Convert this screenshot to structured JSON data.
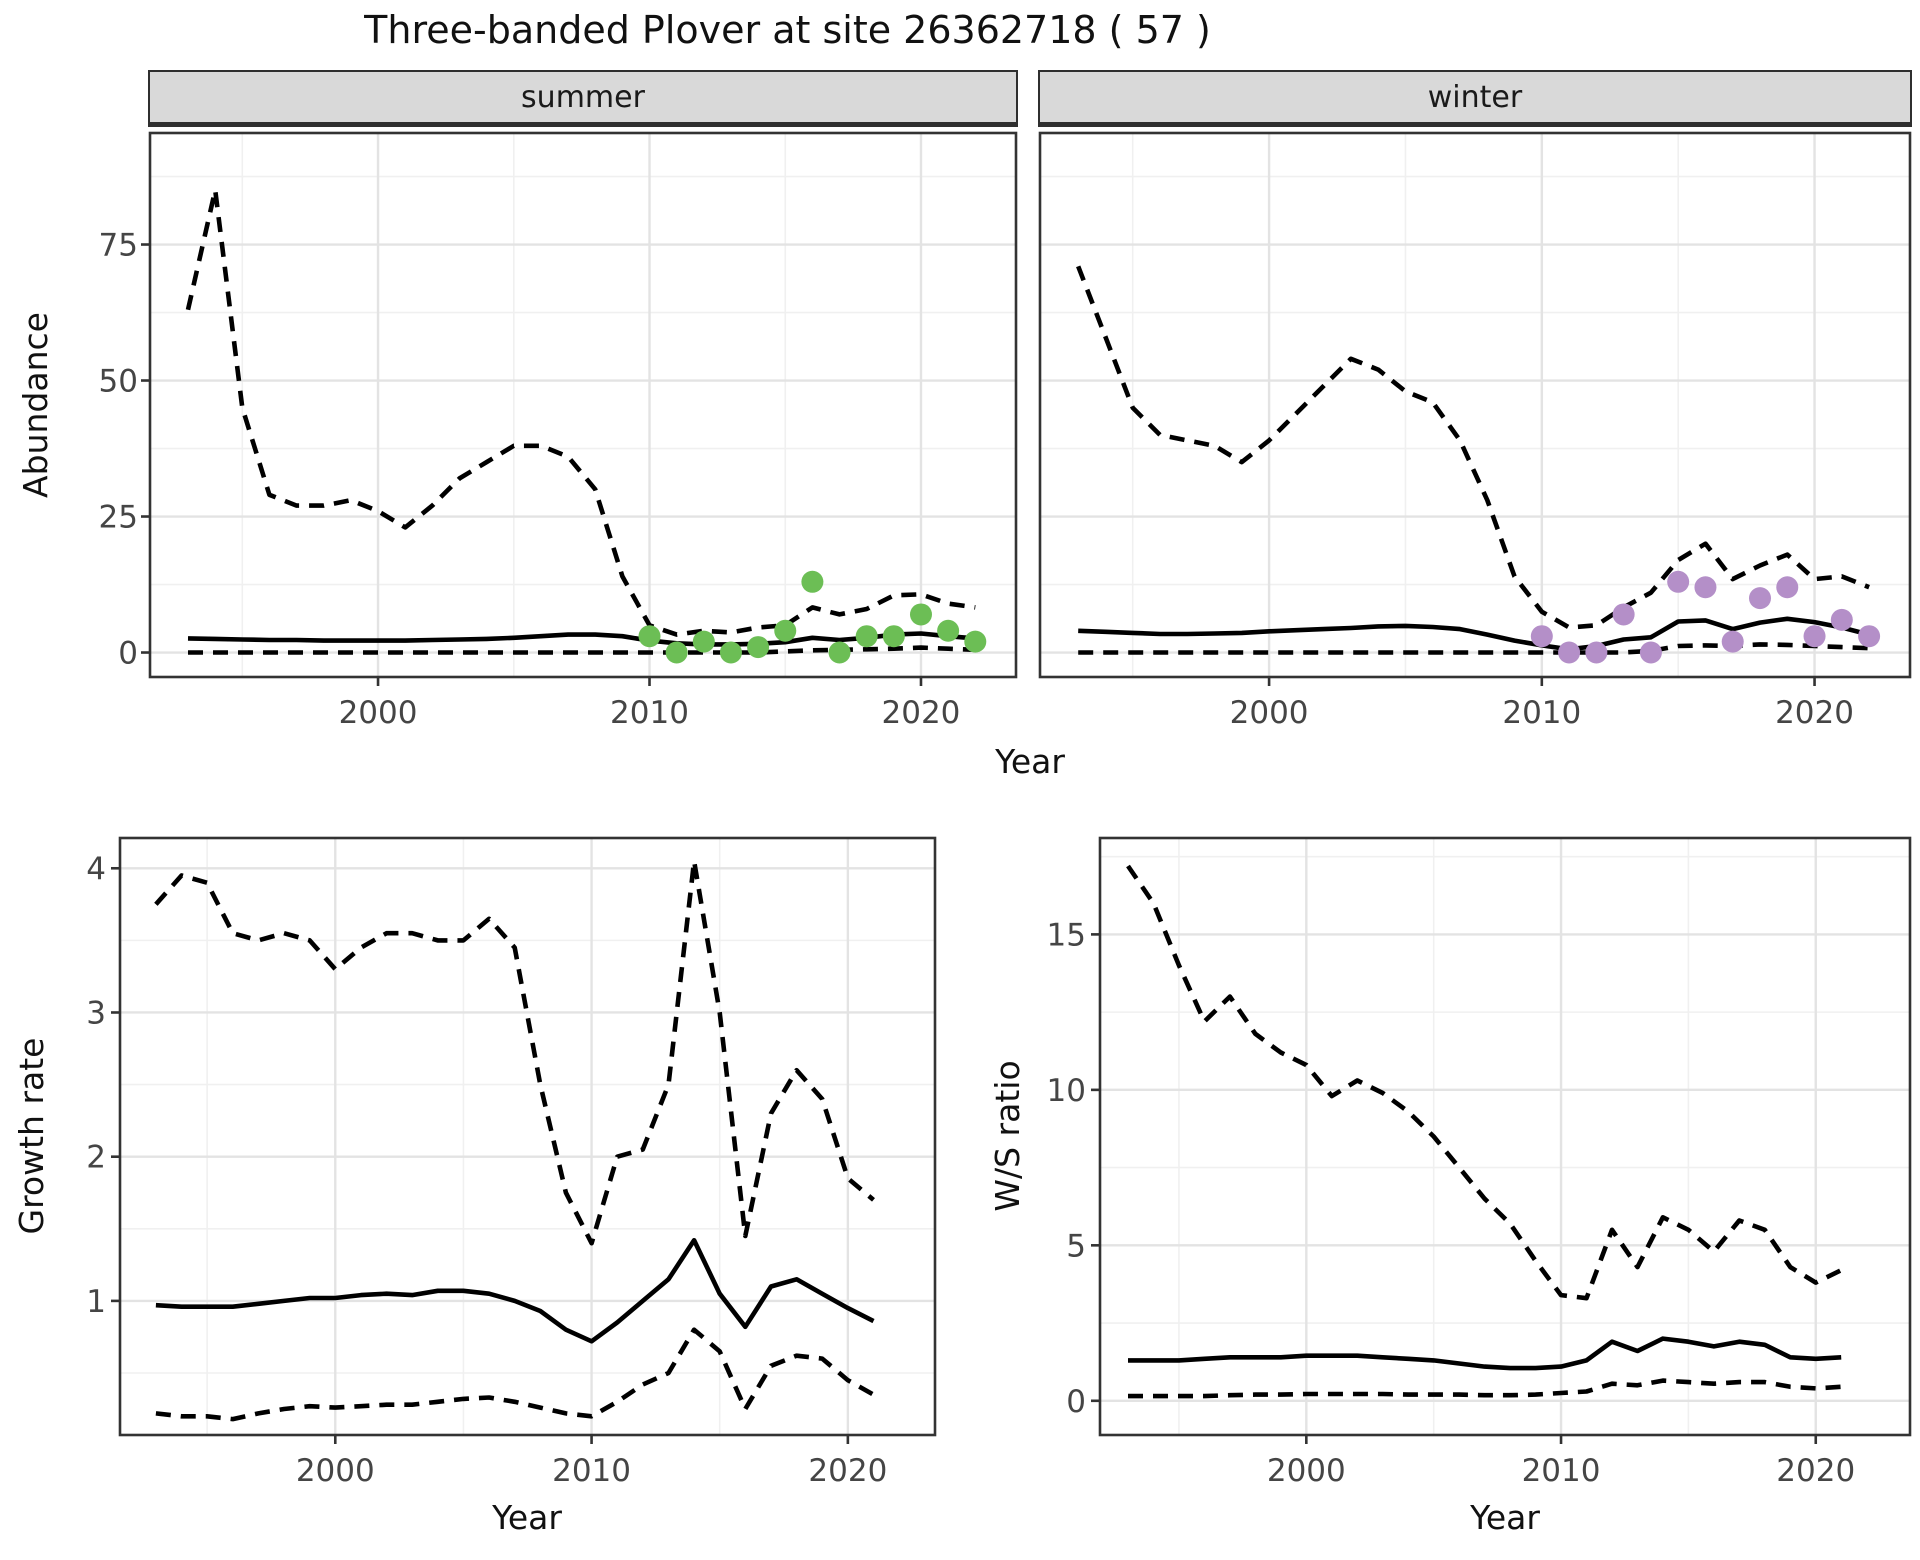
{
  "title": "Three-banded Plover at site 26362718 ( 57 )",
  "facets": {
    "summer": "summer",
    "winter": "winter"
  },
  "axis_labels": {
    "abundance_y": "Abundance",
    "top_x": "Year",
    "growth_y": "Growth rate",
    "growth_x": "Year",
    "ws_y": "W/S ratio",
    "ws_x": "Year"
  },
  "colors": {
    "summer_points": "#6CBE55",
    "winter_points": "#B48FC8",
    "line": "#000000",
    "grid_major": "#e3e3e3",
    "grid_minor": "#f0f0f0",
    "panel_border": "#333333",
    "strip_bg": "#d9d9d9",
    "tick_text": "#454545"
  },
  "chart_data": [
    {
      "id": "abundance_summer",
      "type": "line",
      "facet": "summer",
      "ylabel": "Abundance",
      "xlabel": "Year",
      "x": {
        "lim": [
          1991.6,
          2023.5
        ],
        "ticks": [
          2000,
          2010,
          2020
        ],
        "minor": [
          1995,
          2005,
          2015
        ]
      },
      "y": {
        "lim": [
          -4.5,
          95.5
        ],
        "ticks": [
          0,
          25,
          50,
          75
        ],
        "minor": [
          12.5,
          37.5,
          62.5,
          87.5
        ]
      },
      "years": [
        1993,
        1994,
        1995,
        1996,
        1997,
        1998,
        1999,
        2000,
        2001,
        2002,
        2003,
        2004,
        2005,
        2006,
        2007,
        2008,
        2009,
        2010,
        2011,
        2012,
        2013,
        2014,
        2015,
        2016,
        2017,
        2018,
        2019,
        2020,
        2021,
        2022
      ],
      "series": [
        {
          "name": "upper_ci",
          "linetype": "dashed",
          "values": [
            63,
            85,
            45,
            29,
            27,
            27,
            28,
            26,
            23,
            27,
            32,
            35,
            38,
            38,
            36,
            30,
            14,
            5,
            3.3,
            4,
            3.7,
            4.6,
            5,
            8.3,
            7,
            8,
            10.5,
            10.7,
            9,
            8.3
          ]
        },
        {
          "name": "median",
          "linetype": "solid",
          "values": [
            2.6,
            2.5,
            2.4,
            2.3,
            2.3,
            2.2,
            2.2,
            2.2,
            2.2,
            2.3,
            2.4,
            2.5,
            2.7,
            3,
            3.3,
            3.3,
            3,
            2.2,
            1.7,
            1.5,
            1.5,
            1.6,
            1.9,
            2.7,
            2.3,
            2.7,
            3.3,
            3.5,
            3,
            2.6
          ]
        },
        {
          "name": "lower_ci",
          "linetype": "dashed",
          "values": [
            0,
            0,
            0,
            0,
            0,
            0,
            0,
            0,
            0,
            0,
            0,
            0,
            0,
            0,
            0,
            0,
            0,
            0,
            0,
            0,
            0,
            0,
            0.2,
            0.4,
            0.5,
            0.6,
            0.7,
            0.9,
            0.7,
            0.5
          ]
        }
      ],
      "points": {
        "name": "observed_counts",
        "color_key": "summer_points",
        "years": [
          2010,
          2011,
          2012,
          2013,
          2014,
          2015,
          2016,
          2017,
          2018,
          2019,
          2020,
          2021,
          2022
        ],
        "values": [
          3,
          0,
          2,
          0,
          1,
          4,
          13,
          0,
          3,
          3,
          7,
          4,
          2
        ]
      }
    },
    {
      "id": "abundance_winter",
      "type": "line",
      "facet": "winter",
      "ylabel": "Abundance",
      "xlabel": "Year",
      "x": {
        "lim": [
          1991.6,
          2023.5
        ],
        "ticks": [
          2000,
          2010,
          2020
        ],
        "minor": [
          1995,
          2005,
          2015
        ]
      },
      "y": {
        "lim": [
          -4.5,
          95.5
        ],
        "ticks": [
          0,
          25,
          50,
          75
        ],
        "minor": [
          12.5,
          37.5,
          62.5,
          87.5
        ]
      },
      "years": [
        1993,
        1994,
        1995,
        1996,
        1997,
        1998,
        1999,
        2000,
        2001,
        2002,
        2003,
        2004,
        2005,
        2006,
        2007,
        2008,
        2009,
        2010,
        2011,
        2012,
        2013,
        2014,
        2015,
        2016,
        2017,
        2018,
        2019,
        2020,
        2021,
        2022
      ],
      "series": [
        {
          "name": "upper_ci",
          "linetype": "dashed",
          "values": [
            71,
            58,
            45,
            40,
            39,
            38,
            35,
            39,
            44,
            49,
            54,
            52,
            48,
            46,
            39,
            28,
            14,
            7.5,
            4.6,
            5,
            8.3,
            11,
            17,
            20,
            13.5,
            16,
            18,
            13.5,
            14,
            12
          ]
        },
        {
          "name": "median",
          "linetype": "solid",
          "values": [
            4,
            3.8,
            3.6,
            3.4,
            3.4,
            3.5,
            3.6,
            3.9,
            4.1,
            4.3,
            4.5,
            4.8,
            4.9,
            4.7,
            4.3,
            3.3,
            2.2,
            1.3,
            0.6,
            1.2,
            2.4,
            2.8,
            5.7,
            5.9,
            4.3,
            5.5,
            6.2,
            5.6,
            4.6,
            3.3
          ]
        },
        {
          "name": "lower_ci",
          "linetype": "dashed",
          "values": [
            0,
            0,
            0,
            0,
            0,
            0,
            0,
            0,
            0,
            0,
            0,
            0,
            0,
            0,
            0,
            0,
            0,
            0,
            0,
            0,
            0,
            0.3,
            1.2,
            1.3,
            1.2,
            1.5,
            1.4,
            1.2,
            1,
            0.8
          ]
        }
      ],
      "points": {
        "name": "observed_counts",
        "color_key": "winter_points",
        "years": [
          2010,
          2011,
          2012,
          2013,
          2014,
          2015,
          2016,
          2017,
          2018,
          2019,
          2020,
          2021,
          2022
        ],
        "values": [
          3,
          0,
          0,
          7,
          0,
          13,
          12,
          2,
          10,
          12,
          3,
          6,
          3
        ]
      }
    },
    {
      "id": "growth_rate",
      "type": "line",
      "ylabel": "Growth rate",
      "xlabel": "Year",
      "x": {
        "lim": [
          1991.6,
          2023.4
        ],
        "ticks": [
          2000,
          2010,
          2020
        ],
        "minor": [
          1995,
          2005,
          2015
        ]
      },
      "y": {
        "lim": [
          0.07,
          4.21
        ],
        "ticks": [
          1,
          2,
          3,
          4
        ],
        "minor": [
          0.5,
          1.5,
          2.5,
          3.5
        ]
      },
      "years": [
        1993,
        1994,
        1995,
        1996,
        1997,
        1998,
        1999,
        2000,
        2001,
        2002,
        2003,
        2004,
        2005,
        2006,
        2007,
        2008,
        2009,
        2010,
        2011,
        2012,
        2013,
        2014,
        2015,
        2016,
        2017,
        2018,
        2019,
        2020,
        2021
      ],
      "series": [
        {
          "name": "upper_ci",
          "linetype": "dashed",
          "values": [
            3.75,
            3.95,
            3.9,
            3.55,
            3.5,
            3.55,
            3.5,
            3.3,
            3.45,
            3.55,
            3.55,
            3.5,
            3.5,
            3.65,
            3.45,
            2.5,
            1.75,
            1.4,
            2,
            2.05,
            2.5,
            4.05,
            3,
            1.45,
            2.3,
            2.6,
            2.4,
            1.85,
            1.7
          ]
        },
        {
          "name": "median",
          "linetype": "solid",
          "values": [
            0.97,
            0.96,
            0.96,
            0.96,
            0.98,
            1,
            1.02,
            1.02,
            1.04,
            1.05,
            1.04,
            1.07,
            1.07,
            1.05,
            1,
            0.93,
            0.8,
            0.72,
            0.85,
            1,
            1.15,
            1.42,
            1.05,
            0.82,
            1.1,
            1.15,
            1.05,
            0.95,
            0.86
          ]
        },
        {
          "name": "lower_ci",
          "linetype": "dashed",
          "values": [
            0.22,
            0.2,
            0.2,
            0.18,
            0.22,
            0.25,
            0.27,
            0.26,
            0.27,
            0.28,
            0.28,
            0.3,
            0.32,
            0.33,
            0.3,
            0.26,
            0.22,
            0.2,
            0.3,
            0.42,
            0.5,
            0.8,
            0.65,
            0.25,
            0.55,
            0.62,
            0.6,
            0.45,
            0.35
          ]
        }
      ]
    },
    {
      "id": "ws_ratio",
      "type": "line",
      "ylabel": "W/S ratio",
      "xlabel": "Year",
      "x": {
        "lim": [
          1991.9,
          2023.7
        ],
        "ticks": [
          2000,
          2010,
          2020
        ],
        "minor": [
          1995,
          2005,
          2015
        ]
      },
      "y": {
        "lim": [
          -1.1,
          18.1
        ],
        "ticks": [
          0,
          5,
          10,
          15
        ],
        "minor": [
          2.5,
          7.5,
          12.5,
          17.5
        ]
      },
      "years": [
        1993,
        1994,
        1995,
        1996,
        1997,
        1998,
        1999,
        2000,
        2001,
        2002,
        2003,
        2004,
        2005,
        2006,
        2007,
        2008,
        2009,
        2010,
        2011,
        2012,
        2013,
        2014,
        2015,
        2016,
        2017,
        2018,
        2019,
        2020,
        2021
      ],
      "series": [
        {
          "name": "upper_ci",
          "linetype": "dashed",
          "values": [
            17.2,
            16,
            14,
            12.2,
            13,
            11.8,
            11.2,
            10.8,
            9.8,
            10.3,
            9.9,
            9.3,
            8.5,
            7.5,
            6.5,
            5.7,
            4.5,
            3.4,
            3.3,
            5.5,
            4.3,
            5.9,
            5.5,
            4.8,
            5.8,
            5.5,
            4.3,
            3.8,
            4.2
          ]
        },
        {
          "name": "median",
          "linetype": "solid",
          "values": [
            1.3,
            1.3,
            1.3,
            1.35,
            1.4,
            1.4,
            1.4,
            1.45,
            1.45,
            1.45,
            1.4,
            1.35,
            1.3,
            1.2,
            1.1,
            1.05,
            1.05,
            1.1,
            1.3,
            1.9,
            1.6,
            2,
            1.9,
            1.75,
            1.9,
            1.8,
            1.4,
            1.35,
            1.4
          ]
        },
        {
          "name": "lower_ci",
          "linetype": "dashed",
          "values": [
            0.15,
            0.15,
            0.15,
            0.15,
            0.18,
            0.2,
            0.2,
            0.22,
            0.22,
            0.22,
            0.22,
            0.2,
            0.2,
            0.2,
            0.18,
            0.18,
            0.2,
            0.25,
            0.3,
            0.55,
            0.5,
            0.65,
            0.6,
            0.55,
            0.6,
            0.6,
            0.45,
            0.4,
            0.45
          ]
        }
      ]
    }
  ]
}
